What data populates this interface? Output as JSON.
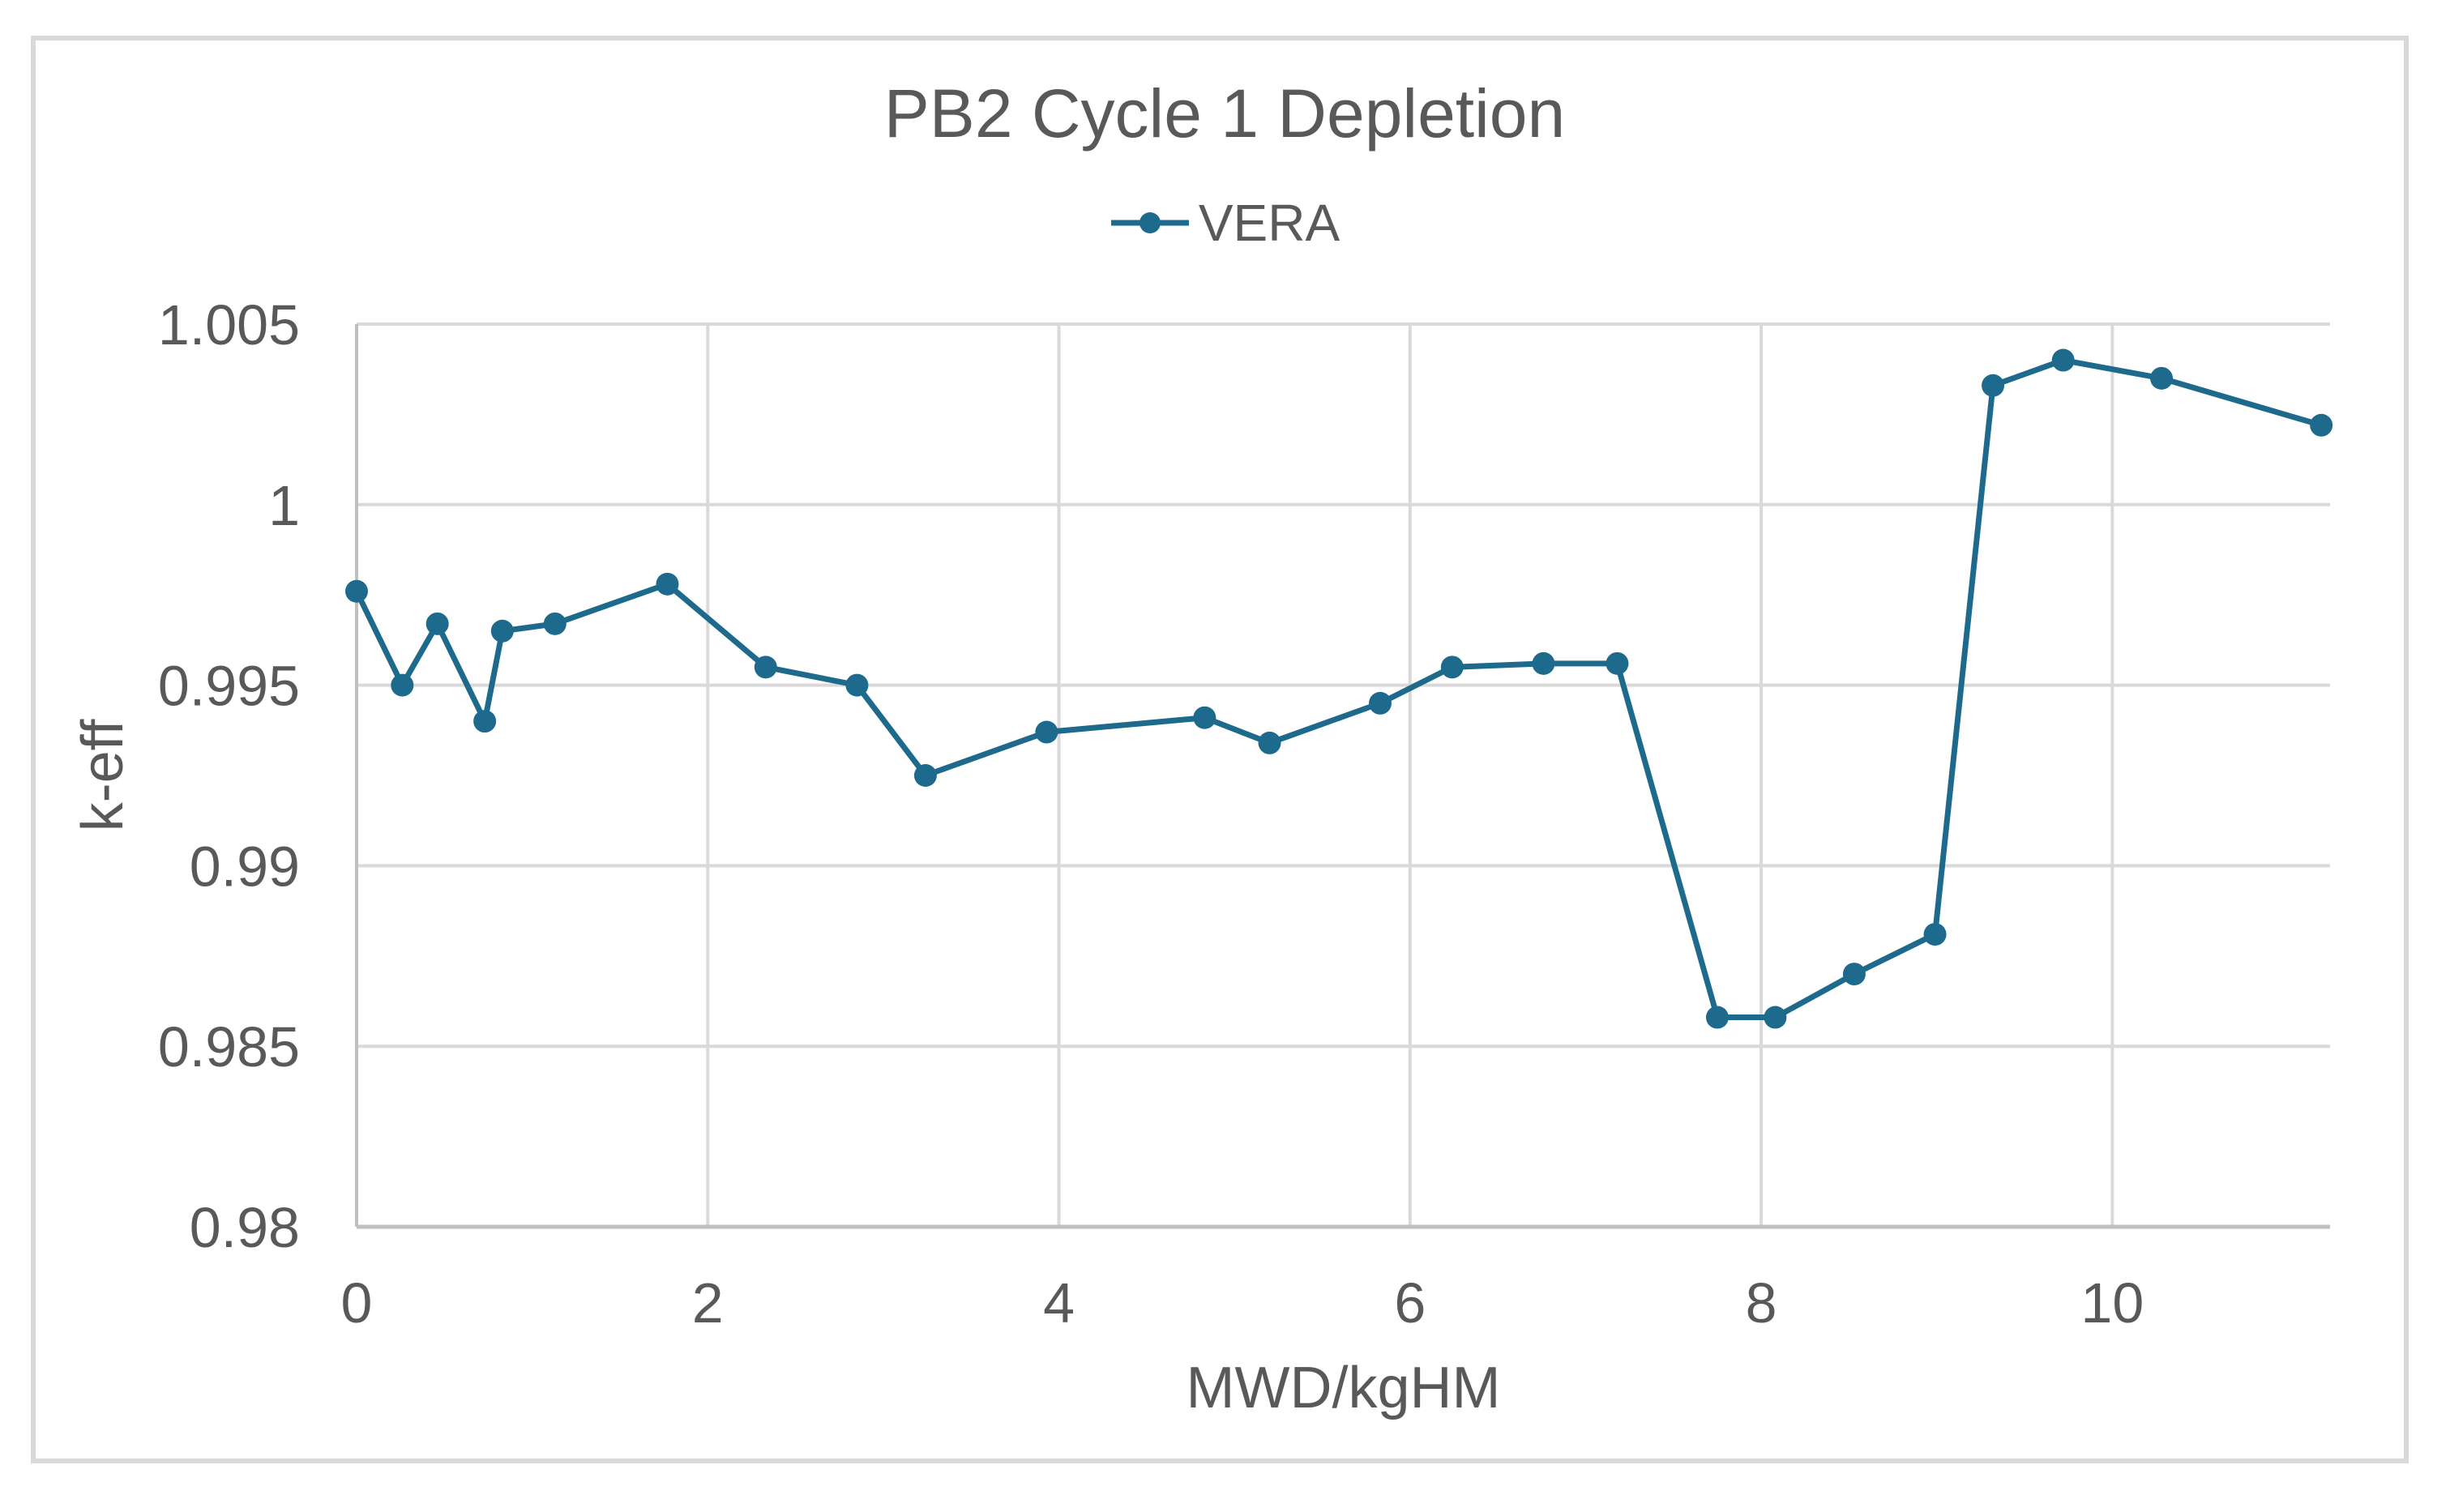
{
  "chart": {
    "title": "PB2 Cycle 1 Depletion",
    "legend": {
      "series_label": "VERA"
    }
  },
  "chart_data": {
    "type": "line",
    "title": "PB2 Cycle 1 Depletion",
    "xlabel": "MWD/kgHM",
    "ylabel": "k-eff",
    "xlim": [
      0,
      11.24
    ],
    "ylim": [
      0.98,
      1.005
    ],
    "x_tick_labels": [
      "0",
      "2",
      "4",
      "6",
      "8",
      "10"
    ],
    "x_ticks": [
      0,
      2,
      4,
      6,
      8,
      10
    ],
    "y_tick_labels": [
      "1.005",
      "1",
      "0.995",
      "0.99",
      "0.985",
      "0.98"
    ],
    "y_ticks": [
      1.005,
      1.0,
      0.995,
      0.99,
      0.985,
      0.98
    ],
    "grid": true,
    "legend_position": "top-center",
    "colors": {
      "series": "#1e6a8c",
      "text": "#595959",
      "gridline": "#d9d9d9",
      "axis_line": "#bfbfbf",
      "frame_border": "#d9d9d9"
    },
    "series": [
      {
        "name": "VERA",
        "color": "#1e6a8c",
        "marker": "circle",
        "points": [
          [
            0.0,
            0.9976
          ],
          [
            0.26,
            0.995
          ],
          [
            0.46,
            0.9967
          ],
          [
            0.73,
            0.994
          ],
          [
            0.83,
            0.9965
          ],
          [
            1.13,
            0.9967
          ],
          [
            1.77,
            0.9978
          ],
          [
            2.33,
            0.9955
          ],
          [
            2.85,
            0.995
          ],
          [
            3.24,
            0.9925
          ],
          [
            3.93,
            0.9937
          ],
          [
            4.83,
            0.9941
          ],
          [
            5.2,
            0.9934
          ],
          [
            5.83,
            0.9945
          ],
          [
            6.24,
            0.9955
          ],
          [
            6.76,
            0.9956
          ],
          [
            7.18,
            0.9956
          ],
          [
            7.75,
            0.9858
          ],
          [
            8.08,
            0.9858
          ],
          [
            8.53,
            0.987
          ],
          [
            8.99,
            0.9881
          ],
          [
            9.32,
            1.0033
          ],
          [
            9.72,
            1.004
          ],
          [
            10.28,
            1.0035
          ],
          [
            11.19,
            1.0022
          ]
        ]
      }
    ]
  }
}
